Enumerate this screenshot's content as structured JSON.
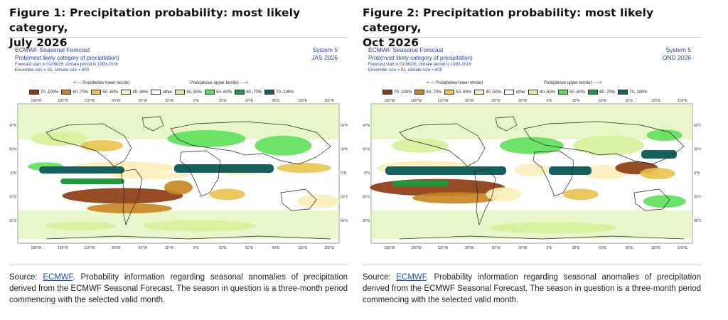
{
  "figures": [
    {
      "title_line1": "Figure 1: Precipitation probability: most likely category,",
      "title_line2": "July 2026",
      "header_left": [
        "ECMWF Seasonal Forecast",
        "Prob(most likely category of precipitation)",
        "Forecast start is 01/06/26, climate period is 1993-2016",
        "Ensemble size = 51, climate size = 600"
      ],
      "header_right": [
        "System 5",
        "JAS 2026"
      ],
      "tercile_below": "<---- Prob(below lower tercile)",
      "tercile_above": "Prob(above upper tercile) ---->",
      "legend": [
        {
          "label": "70..100%",
          "color": "#8b3a0e"
        },
        {
          "label": "60..70%",
          "color": "#c8851e"
        },
        {
          "label": "50..60%",
          "color": "#e8c24a"
        },
        {
          "label": "40..50%",
          "color": "#fbeeb8"
        },
        {
          "label": "other",
          "color": "#ffffff"
        },
        {
          "label": "40..50%",
          "color": "#d4f19a"
        },
        {
          "label": "50..60%",
          "color": "#5ee05a"
        },
        {
          "label": "60..70%",
          "color": "#1e9a3c"
        },
        {
          "label": "70..100%",
          "color": "#15615e"
        }
      ],
      "lon_labels": [
        "180°W",
        "150°W",
        "120°W",
        "90°W",
        "60°W",
        "30°W",
        "0°E",
        "30°E",
        "60°E",
        "90°E",
        "120°E",
        "150°E"
      ],
      "lat_labels": [
        "60°N",
        "30°N",
        "0°N",
        "30°S",
        "60°S"
      ],
      "caption_prefix": "Source: ",
      "caption_link": "ECMWF",
      "caption_rest": ". Probability information regarding seasonal anomalies of precipitation derived from the ECMWF Seasonal Forecast. The season in question is a three-month period commencing with the selected valid month."
    },
    {
      "title_line1": "Figure 2: Precipitation probability: most likely category,",
      "title_line2": "Oct 2026",
      "header_left": [
        "ECMWF Seasonal Forecast",
        "Prob(most likely category of precipitation)",
        "Forecast start is 01/06/26, climate period is 1993-2016",
        "Ensemble size = 51, climate size = 600"
      ],
      "header_right": [
        "System 5",
        "OND 2026"
      ],
      "tercile_below": "<---- Prob(below lower tercile)",
      "tercile_above": "Prob(above upper tercile) ---->",
      "legend": [
        {
          "label": "70..100%",
          "color": "#8b3a0e"
        },
        {
          "label": "60..70%",
          "color": "#c8851e"
        },
        {
          "label": "50..60%",
          "color": "#e8c24a"
        },
        {
          "label": "40..50%",
          "color": "#fbeeb8"
        },
        {
          "label": "other",
          "color": "#ffffff"
        },
        {
          "label": "40..50%",
          "color": "#d4f19a"
        },
        {
          "label": "50..60%",
          "color": "#5ee05a"
        },
        {
          "label": "60..70%",
          "color": "#1e9a3c"
        },
        {
          "label": "70..100%",
          "color": "#15615e"
        }
      ],
      "lon_labels": [
        "180°W",
        "150°W",
        "120°W",
        "90°W",
        "60°W",
        "30°W",
        "0°E",
        "30°E",
        "60°E",
        "90°E",
        "120°E",
        "150°E"
      ],
      "lat_labels": [
        "60°N",
        "30°N",
        "0°N",
        "30°S",
        "60°S"
      ],
      "caption_prefix": "Source: ",
      "caption_link": "ECMWF",
      "caption_rest": ". Probability information regarding seasonal anomalies of precipitation derived from the ECMWF Seasonal Forecast. The season in question is a three-month period commencing with the selected valid month."
    }
  ]
}
